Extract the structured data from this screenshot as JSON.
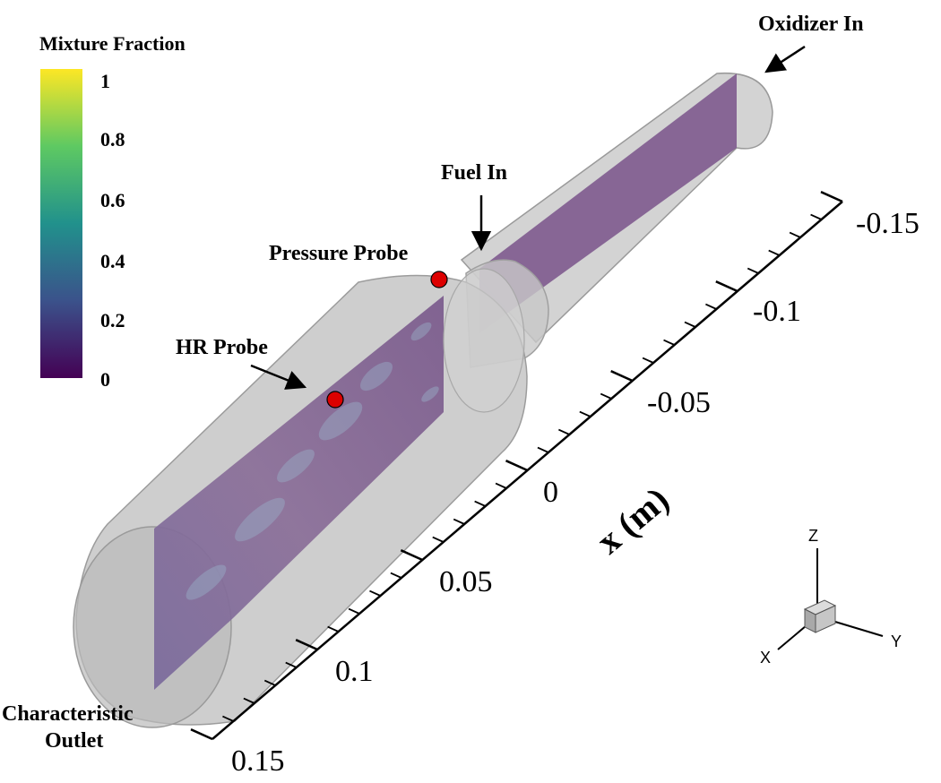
{
  "colorbar": {
    "title": "Mixture Fraction",
    "ticks": [
      "1",
      "0.8",
      "0.6",
      "0.4",
      "0.2",
      "0"
    ],
    "colormap": "viridis",
    "colors": [
      "#440154",
      "#3b528b",
      "#21918c",
      "#5ec962",
      "#fde725"
    ]
  },
  "labels": {
    "oxidizer_in": "Oxidizer In",
    "fuel_in": "Fuel In",
    "pressure_probe": "Pressure Probe",
    "hr_probe": "HR Probe",
    "outlet_line1": "Characteristic",
    "outlet_line2": "Outlet"
  },
  "axis": {
    "title": "x (m)",
    "tick_labels": [
      "-0.15",
      "-0.1",
      "-0.05",
      "0",
      "0.05",
      "0.1",
      "0.15"
    ]
  },
  "triad": {
    "x": "X",
    "y": "Y",
    "z": "Z"
  },
  "colors": {
    "probe": "#dd0000",
    "slice": "#7e5a8e",
    "cylinder": "#bdbdbd"
  }
}
